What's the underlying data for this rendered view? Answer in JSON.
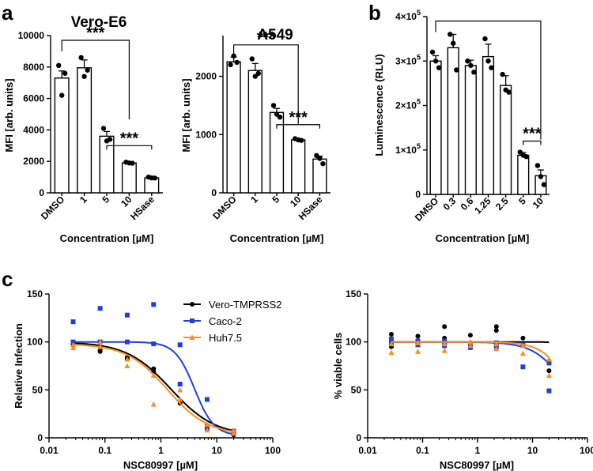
{
  "panel_labels": [
    "a",
    "b",
    "c"
  ],
  "chart_data": [
    {
      "id": "vero",
      "type": "bar",
      "title": "Vero-E6",
      "xlabel": "Concentration [µM]",
      "ylabel": "MFI [arb. units]",
      "categories": [
        "DMSO",
        "1",
        "5",
        "10",
        "HSase"
      ],
      "values": [
        7300,
        7950,
        3600,
        1900,
        950
      ],
      "errors": [
        450,
        500,
        300,
        60,
        50
      ],
      "points": [
        [
          8100,
          6200,
          7600
        ],
        [
          8600,
          7400,
          7800
        ],
        [
          4100,
          3300,
          3400
        ],
        [
          1950,
          1900,
          1880
        ],
        [
          1000,
          950,
          940
        ]
      ],
      "ylim": [
        0,
        10000
      ],
      "yticks": [
        0,
        2000,
        4000,
        6000,
        8000,
        10000
      ],
      "ytick_labels": [
        "0",
        "2000",
        "4000",
        "6000",
        "8000",
        "10000"
      ],
      "significance": [
        {
          "label": "***",
          "from": "DMSO",
          "to": "10"
        },
        {
          "label": "***",
          "from": "5",
          "to": "HSase"
        }
      ]
    },
    {
      "id": "a549",
      "type": "bar",
      "title": "A549",
      "xlabel": "Concentration [µM]",
      "ylabel": "MFI [arb. units]",
      "categories": [
        "DMSO",
        "1",
        "5",
        "10",
        "HSase"
      ],
      "values": [
        2250,
        2100,
        1380,
        910,
        580
      ],
      "errors": [
        80,
        120,
        70,
        20,
        50
      ],
      "points": [
        [
          2200,
          2350,
          2240
        ],
        [
          2300,
          2000,
          2050
        ],
        [
          1500,
          1350,
          1300
        ],
        [
          930,
          910,
          900
        ],
        [
          640,
          590,
          500
        ]
      ],
      "ylim": [
        0,
        2700
      ],
      "yticks": [
        0,
        1000,
        2000
      ],
      "ytick_labels": [
        "0",
        "1000",
        "2000"
      ],
      "significance": [
        {
          "label": "***",
          "from": "DMSO",
          "to": "10"
        },
        {
          "label": "***",
          "from": "5",
          "to": "HSase"
        }
      ]
    },
    {
      "id": "lum",
      "type": "bar",
      "title": "",
      "xlabel": "Concentration [µM]",
      "ylabel": "Luminescence (RLU)",
      "categories": [
        "DMSO",
        "0.3",
        "0.6",
        "1.25",
        "2.5",
        "5",
        "10"
      ],
      "values": [
        300000,
        330000,
        290000,
        310000,
        245000,
        88000,
        42000
      ],
      "errors": [
        12000,
        30000,
        12000,
        28000,
        22000,
        6000,
        13000
      ],
      "points": [
        [
          320000,
          300000,
          285000
        ],
        [
          360000,
          340000,
          280000
        ],
        [
          300000,
          290000,
          275000
        ],
        [
          350000,
          300000,
          285000
        ],
        [
          270000,
          235000,
          230000
        ],
        [
          95000,
          88000,
          85000
        ],
        [
          65000,
          40000,
          22000
        ]
      ],
      "ylim": [
        0,
        400000
      ],
      "yticks": [
        0,
        100000,
        200000,
        300000,
        400000
      ],
      "ytick_labels": [
        "0",
        "1×10",
        "2×10",
        "3×10",
        "4×10"
      ],
      "ytick_exponent": "5",
      "significance": [
        {
          "label": "",
          "from": "DMSO",
          "to": "10"
        },
        {
          "label": "***",
          "from": "5",
          "to": "10"
        }
      ]
    },
    {
      "id": "infection",
      "type": "scatter",
      "xscale": "log",
      "xlabel": "NSC80997 [µM]",
      "ylabel": "Relative Infection",
      "xlim": [
        0.01,
        100
      ],
      "xticks": [
        0.01,
        0.1,
        1,
        10,
        100
      ],
      "xtick_labels": [
        "0.01",
        "0.1",
        "1",
        "10",
        "100"
      ],
      "ylim": [
        0,
        150
      ],
      "yticks": [
        0,
        50,
        100,
        150
      ],
      "ytick_labels": [
        "0",
        "50",
        "100",
        "150"
      ],
      "series": [
        {
          "name": "Vero-TMPRSS2",
          "color": "#000000",
          "marker": "circle",
          "x": [
            0.027,
            0.027,
            0.082,
            0.082,
            0.25,
            0.25,
            0.74,
            0.74,
            2.2,
            2.2,
            6.7,
            6.7,
            20,
            20
          ],
          "y": [
            99,
            97,
            92,
            90,
            84,
            82,
            72,
            69,
            38,
            36,
            13,
            11,
            3,
            4
          ],
          "fit": {
            "top": 100,
            "bottom": 2,
            "ic50": 1.5,
            "hill": 1.1
          }
        },
        {
          "name": "Caco-2",
          "color": "#1f3fdd",
          "marker": "square",
          "x": [
            0.027,
            0.027,
            0.082,
            0.082,
            0.25,
            0.25,
            0.74,
            0.74,
            2.2,
            2.2,
            6.7,
            6.7,
            20,
            20
          ],
          "y": [
            121,
            100,
            135,
            100,
            128,
            100,
            139,
            98,
            97,
            56,
            40,
            10,
            7,
            4
          ],
          "fit": {
            "top": 100,
            "bottom": 2,
            "ic50": 4.0,
            "hill": 2.5
          }
        },
        {
          "name": "Huh7.5",
          "color": "#ff8c1a",
          "marker": "triangle",
          "x": [
            0.027,
            0.027,
            0.082,
            0.082,
            0.25,
            0.25,
            0.74,
            0.74,
            2.2,
            2.2,
            6.7,
            6.7,
            20,
            20
          ],
          "y": [
            94,
            97,
            95,
            100,
            82,
            75,
            65,
            35,
            50,
            40,
            14,
            8,
            5,
            8
          ],
          "fit": {
            "top": 98,
            "bottom": 3,
            "ic50": 1.3,
            "hill": 1.2
          }
        }
      ]
    },
    {
      "id": "viability",
      "type": "scatter",
      "xscale": "log",
      "xlabel": "NSC80997 [µM]",
      "ylabel": "% viable cells",
      "xlim": [
        0.01,
        100
      ],
      "xticks": [
        0.01,
        0.1,
        1,
        10,
        100
      ],
      "xtick_labels": [
        "0.01",
        "0.1",
        "1",
        "10",
        "100"
      ],
      "ylim": [
        0,
        150
      ],
      "yticks": [
        0,
        50,
        100,
        150
      ],
      "ytick_labels": [
        "0",
        "50",
        "100",
        "150"
      ],
      "series": [
        {
          "name": "Vero-TMPRSS2",
          "color": "#000000",
          "marker": "circle",
          "x": [
            0.027,
            0.027,
            0.027,
            0.082,
            0.082,
            0.25,
            0.25,
            0.25,
            0.74,
            0.74,
            2.2,
            2.2,
            6.7,
            6.7,
            20,
            20
          ],
          "y": [
            108,
            99,
            95,
            106,
            98,
            116,
            104,
            97,
            107,
            99,
            116,
            112,
            104,
            96,
            80,
            70
          ],
          "fit": {
            "top": 100,
            "bottom": 0,
            "ic50": 80,
            "hill": 4
          }
        },
        {
          "name": "Caco-2",
          "color": "#1f3fdd",
          "marker": "square",
          "x": [
            0.027,
            0.027,
            0.082,
            0.082,
            0.25,
            0.25,
            0.74,
            0.74,
            2.2,
            2.2,
            6.7,
            6.7,
            20,
            20
          ],
          "y": [
            103,
            99,
            101,
            97,
            101,
            96,
            98,
            94,
            99,
            95,
            97,
            74,
            78,
            49
          ],
          "fit": {
            "top": 100,
            "bottom": 0,
            "ic50": 45,
            "hill": 1.5
          }
        },
        {
          "name": "Huh7.5",
          "color": "#ff8c1a",
          "marker": "triangle",
          "x": [
            0.027,
            0.027,
            0.082,
            0.082,
            0.25,
            0.25,
            0.74,
            0.74,
            2.2,
            2.2,
            6.7,
            6.7,
            20,
            20
          ],
          "y": [
            98,
            89,
            99,
            90,
            98,
            91,
            100,
            96,
            98,
            93,
            96,
            88,
            82,
            65
          ],
          "fit": {
            "top": 100,
            "bottom": 0,
            "ic50": 50,
            "hill": 1.8
          }
        }
      ]
    }
  ]
}
